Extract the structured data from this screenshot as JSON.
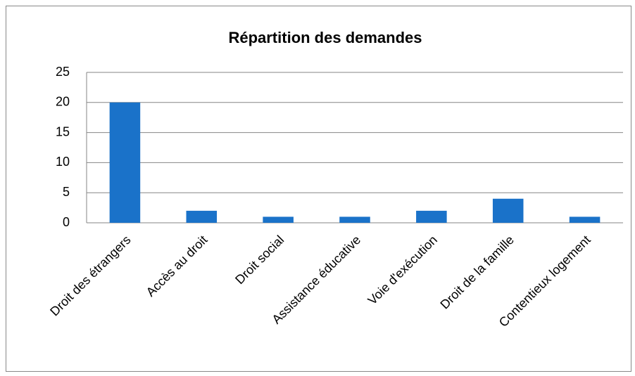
{
  "chart_data": {
    "type": "bar",
    "title": "Répartition des demandes",
    "categories": [
      "Droit des étrangers",
      "Accès au droit",
      "Droit social",
      "Assistance éducative",
      "Voie d'exécution",
      "Droit de la famille",
      "Contentieux logement"
    ],
    "values": [
      20,
      2,
      1,
      1,
      2,
      4,
      1
    ],
    "color": "#1a72c9",
    "ylim": [
      0,
      25
    ],
    "yticks": [
      0,
      5,
      10,
      15,
      20,
      25
    ],
    "grid": true
  }
}
